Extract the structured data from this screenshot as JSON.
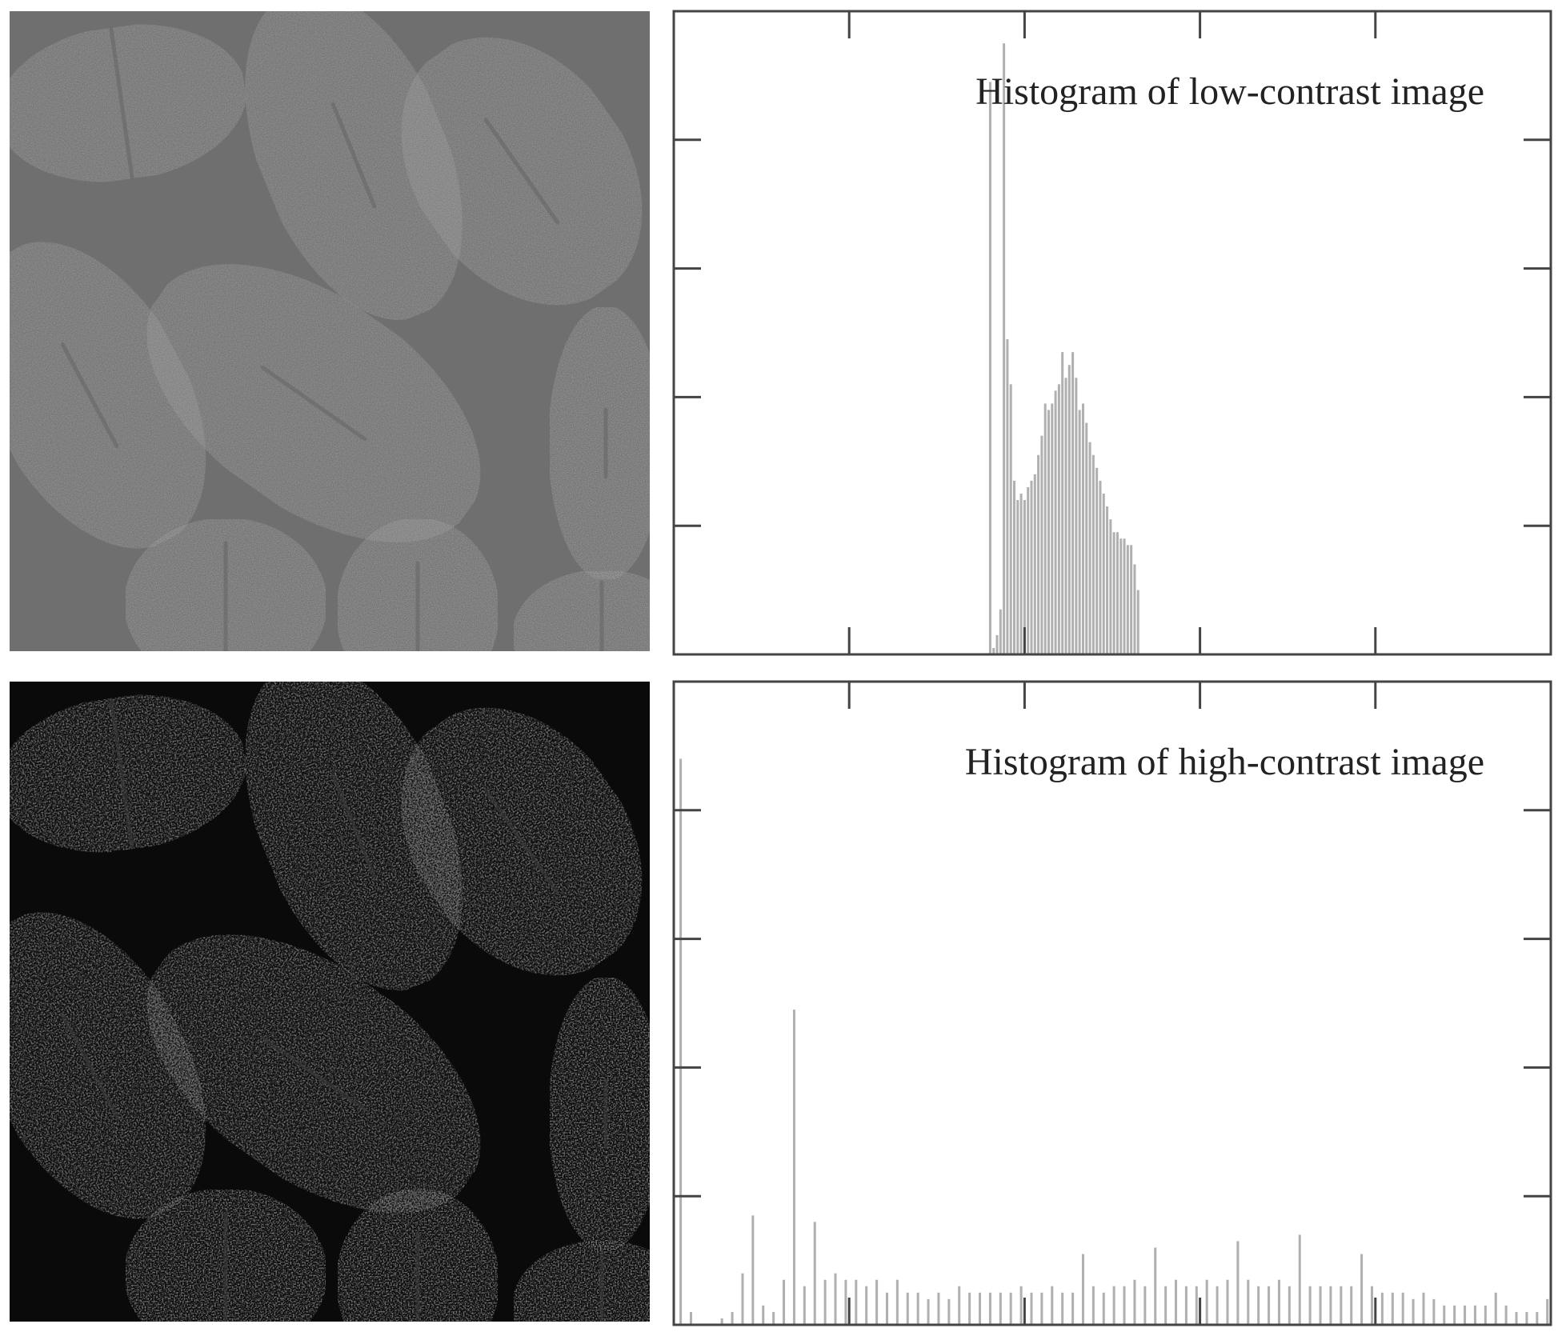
{
  "colors": {
    "axis": "#444444",
    "bar": "#b0b0b0",
    "low_photo_background": "#6f6f6f",
    "low_photo_grain": "#7f7f7f",
    "high_photo_background": "#0a0a0a",
    "high_photo_grain": "#dedede"
  },
  "photos": {
    "low_contrast": {
      "icon": "pollen-grains-low-contrast-photo"
    },
    "high_contrast": {
      "icon": "pollen-grains-high-contrast-photo"
    }
  },
  "chart_data": [
    {
      "type": "bar",
      "title": "Histogram of low-contrast image",
      "xlabel": "",
      "ylabel": "",
      "xlim": [
        0,
        255
      ],
      "ylim": [
        0,
        1
      ],
      "grid": false,
      "legend": "none",
      "x_ticks": 5,
      "y_ticks": 5,
      "x": [
        92,
        93,
        94,
        95,
        96,
        97,
        98,
        99,
        100,
        101,
        102,
        103,
        104,
        105,
        106,
        107,
        108,
        109,
        110,
        111,
        112,
        113,
        114,
        115,
        116,
        117,
        118,
        119,
        120,
        121,
        122,
        123,
        124,
        125,
        126,
        127,
        128,
        129,
        130,
        131,
        132,
        133,
        134,
        135
      ],
      "values": [
        0.89,
        0.01,
        0.03,
        0.07,
        0.95,
        0.49,
        0.42,
        0.27,
        0.24,
        0.25,
        0.24,
        0.26,
        0.27,
        0.28,
        0.31,
        0.34,
        0.39,
        0.38,
        0.39,
        0.41,
        0.42,
        0.47,
        0.43,
        0.45,
        0.47,
        0.43,
        0.38,
        0.39,
        0.36,
        0.33,
        0.31,
        0.29,
        0.27,
        0.25,
        0.23,
        0.21,
        0.19,
        0.19,
        0.18,
        0.18,
        0.17,
        0.17,
        0.14,
        0.1
      ]
    },
    {
      "type": "bar",
      "title": "Histogram of high-contrast image",
      "xlabel": "",
      "ylabel": "",
      "xlim": [
        0,
        255
      ],
      "ylim": [
        0,
        1
      ],
      "grid": false,
      "legend": "none",
      "x_ticks": 5,
      "y_ticks": 5,
      "x": [
        2,
        5,
        8,
        11,
        14,
        17,
        20,
        23,
        26,
        29,
        32,
        35,
        38,
        41,
        44,
        47,
        50,
        53,
        56,
        59,
        62,
        65,
        68,
        71,
        74,
        77,
        80,
        83,
        86,
        89,
        92,
        95,
        98,
        101,
        104,
        107,
        110,
        113,
        116,
        119,
        122,
        125,
        128,
        131,
        134,
        137,
        140,
        143,
        146,
        149,
        152,
        155,
        158,
        161,
        164,
        167,
        170,
        173,
        176,
        179,
        182,
        185,
        188,
        191,
        194,
        197,
        200,
        203,
        206,
        209,
        212,
        215,
        218,
        221,
        224,
        227,
        230,
        233,
        236,
        239,
        242,
        245,
        248,
        251,
        254
      ],
      "values": [
        0.88,
        0.02,
        0.0,
        0.0,
        0.01,
        0.02,
        0.08,
        0.17,
        0.03,
        0.02,
        0.07,
        0.49,
        0.06,
        0.16,
        0.07,
        0.08,
        0.07,
        0.07,
        0.06,
        0.07,
        0.05,
        0.07,
        0.05,
        0.05,
        0.04,
        0.05,
        0.04,
        0.06,
        0.05,
        0.05,
        0.05,
        0.05,
        0.05,
        0.06,
        0.05,
        0.05,
        0.06,
        0.05,
        0.05,
        0.11,
        0.06,
        0.05,
        0.06,
        0.06,
        0.07,
        0.06,
        0.12,
        0.06,
        0.07,
        0.06,
        0.06,
        0.07,
        0.06,
        0.07,
        0.13,
        0.07,
        0.06,
        0.06,
        0.07,
        0.06,
        0.14,
        0.06,
        0.06,
        0.06,
        0.06,
        0.06,
        0.11,
        0.06,
        0.05,
        0.05,
        0.05,
        0.04,
        0.05,
        0.04,
        0.03,
        0.03,
        0.03,
        0.03,
        0.03,
        0.05,
        0.03,
        0.02,
        0.02,
        0.02,
        0.04
      ]
    }
  ]
}
